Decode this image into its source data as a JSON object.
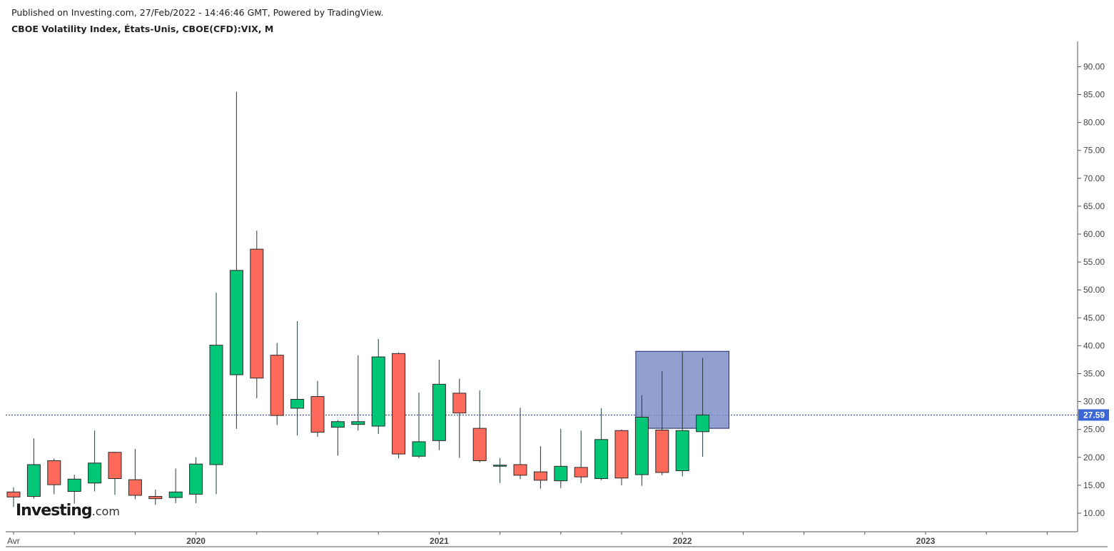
{
  "header": {
    "published": "Published on Investing.com, 27/Feb/2022 - 14:46:46 GMT, Powered by TradingView.",
    "title": "CBOE Volatility Index, États-Unis, CBOE(CFD):VIX, M"
  },
  "logo": {
    "main": "Investing",
    "suffix": ".com"
  },
  "colors": {
    "up": "#00c675",
    "down": "#ff6a5b",
    "wick": "#1f3a3a",
    "price_line": "#2040a0",
    "price_label_bg": "#3a66d6",
    "highlight_fill": "#7e8fc8",
    "highlight_stroke": "#1c2a6e"
  },
  "chart_data": {
    "type": "candlestick",
    "title": "CBOE Volatility Index, États-Unis, CBOE(CFD):VIX, M",
    "timeframe": "M",
    "y_axis": {
      "position": "right",
      "ticks": [
        "10.00",
        "15.00",
        "20.00",
        "25.00",
        "30.00",
        "35.00",
        "40.00",
        "45.00",
        "50.00",
        "55.00",
        "60.00",
        "65.00",
        "70.00",
        "75.00",
        "80.00",
        "85.00",
        "90.00"
      ],
      "tick_values": [
        10,
        15,
        20,
        25,
        30,
        35,
        40,
        45,
        50,
        55,
        60,
        65,
        70,
        75,
        80,
        85,
        90
      ]
    },
    "x_axis": {
      "labels": [
        {
          "text": "Avr",
          "date": "2019-04"
        },
        {
          "text": "2020",
          "date": "2020-01"
        },
        {
          "text": "2021",
          "date": "2021-01"
        },
        {
          "text": "2022",
          "date": "2022-01"
        },
        {
          "text": "2023",
          "date": "2023-01"
        }
      ]
    },
    "last_price": 27.59,
    "last_price_label": "27.59",
    "highlight": {
      "start": "2021-11",
      "end": "2022-03",
      "top": 39.0,
      "bottom": 25.2
    },
    "candles": [
      {
        "date": "2019-04",
        "o": 13.8,
        "h": 14.6,
        "l": 11.1,
        "c": 12.9
      },
      {
        "date": "2019-05",
        "o": 13.0,
        "h": 23.4,
        "l": 12.6,
        "c": 18.7
      },
      {
        "date": "2019-06",
        "o": 19.4,
        "h": 19.8,
        "l": 13.4,
        "c": 15.1
      },
      {
        "date": "2019-07",
        "o": 13.9,
        "h": 16.9,
        "l": 11.7,
        "c": 16.1
      },
      {
        "date": "2019-08",
        "o": 15.4,
        "h": 24.8,
        "l": 13.9,
        "c": 18.98
      },
      {
        "date": "2019-09",
        "o": 20.9,
        "h": 21.0,
        "l": 13.3,
        "c": 16.2
      },
      {
        "date": "2019-10",
        "o": 16.0,
        "h": 21.5,
        "l": 12.5,
        "c": 13.2
      },
      {
        "date": "2019-11",
        "o": 13.0,
        "h": 14.2,
        "l": 11.5,
        "c": 12.6
      },
      {
        "date": "2019-12",
        "o": 12.8,
        "h": 18.0,
        "l": 11.8,
        "c": 13.8
      },
      {
        "date": "2020-01",
        "o": 13.4,
        "h": 20.0,
        "l": 11.8,
        "c": 18.8
      },
      {
        "date": "2020-02",
        "o": 18.7,
        "h": 49.5,
        "l": 13.4,
        "c": 40.1
      },
      {
        "date": "2020-03",
        "o": 34.8,
        "h": 85.5,
        "l": 25.1,
        "c": 53.5
      },
      {
        "date": "2020-04",
        "o": 57.3,
        "h": 60.6,
        "l": 30.6,
        "c": 34.2
      },
      {
        "date": "2020-05",
        "o": 38.3,
        "h": 40.5,
        "l": 25.8,
        "c": 27.5
      },
      {
        "date": "2020-06",
        "o": 28.8,
        "h": 44.4,
        "l": 23.9,
        "c": 30.4
      },
      {
        "date": "2020-07",
        "o": 30.9,
        "h": 33.7,
        "l": 23.7,
        "c": 24.5
      },
      {
        "date": "2020-08",
        "o": 25.4,
        "h": 26.7,
        "l": 20.3,
        "c": 26.4
      },
      {
        "date": "2020-09",
        "o": 25.9,
        "h": 38.3,
        "l": 24.8,
        "c": 26.4
      },
      {
        "date": "2020-10",
        "o": 25.6,
        "h": 41.2,
        "l": 24.2,
        "c": 38.0
      },
      {
        "date": "2020-11",
        "o": 38.6,
        "h": 38.8,
        "l": 19.8,
        "c": 20.6
      },
      {
        "date": "2020-12",
        "o": 20.2,
        "h": 31.6,
        "l": 19.9,
        "c": 22.8
      },
      {
        "date": "2021-01",
        "o": 23.0,
        "h": 37.5,
        "l": 21.3,
        "c": 33.1
      },
      {
        "date": "2021-02",
        "o": 31.5,
        "h": 34.1,
        "l": 19.9,
        "c": 27.95
      },
      {
        "date": "2021-03",
        "o": 25.2,
        "h": 32.0,
        "l": 19.1,
        "c": 19.4
      },
      {
        "date": "2021-04",
        "o": 18.6,
        "h": 19.9,
        "l": 15.4,
        "c": 18.6
      },
      {
        "date": "2021-05",
        "o": 18.7,
        "h": 28.9,
        "l": 16.1,
        "c": 16.8
      },
      {
        "date": "2021-06",
        "o": 17.4,
        "h": 22.0,
        "l": 14.4,
        "c": 15.9
      },
      {
        "date": "2021-07",
        "o": 15.8,
        "h": 25.1,
        "l": 14.5,
        "c": 18.4
      },
      {
        "date": "2021-08",
        "o": 18.2,
        "h": 24.8,
        "l": 15.4,
        "c": 16.5
      },
      {
        "date": "2021-09",
        "o": 16.2,
        "h": 28.8,
        "l": 15.9,
        "c": 23.2
      },
      {
        "date": "2021-10",
        "o": 24.8,
        "h": 25.0,
        "l": 15.0,
        "c": 16.3
      },
      {
        "date": "2021-11",
        "o": 16.9,
        "h": 31.1,
        "l": 14.9,
        "c": 27.2
      },
      {
        "date": "2021-12",
        "o": 24.9,
        "h": 35.5,
        "l": 16.8,
        "c": 17.3
      },
      {
        "date": "2022-01",
        "o": 17.6,
        "h": 38.9,
        "l": 16.6,
        "c": 24.8
      },
      {
        "date": "2022-02",
        "o": 24.6,
        "h": 37.8,
        "l": 20.1,
        "c": 27.59
      }
    ]
  }
}
